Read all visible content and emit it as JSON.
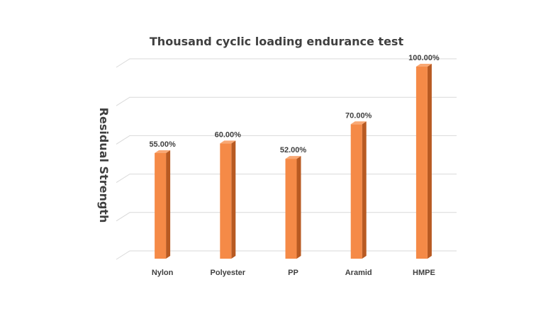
{
  "chart_data": {
    "type": "bar",
    "title": "Thousand cyclic loading endurance test",
    "xlabel": "",
    "ylabel": "Residual Strength",
    "categories": [
      "Nylon",
      "Polyester",
      "PP",
      "Aramid",
      "HMPE"
    ],
    "values": [
      55,
      60,
      52,
      70,
      100
    ],
    "data_labels": [
      "55.00%",
      "60.00%",
      "52.00%",
      "70.00%",
      "100.00%"
    ],
    "ylim": [
      0,
      100
    ],
    "grid": true,
    "legend": "none",
    "style": "3d-column",
    "colors": {
      "bar_front": "#f58a47",
      "bar_side": "#b85a22",
      "bar_top": "#f9a874"
    }
  }
}
